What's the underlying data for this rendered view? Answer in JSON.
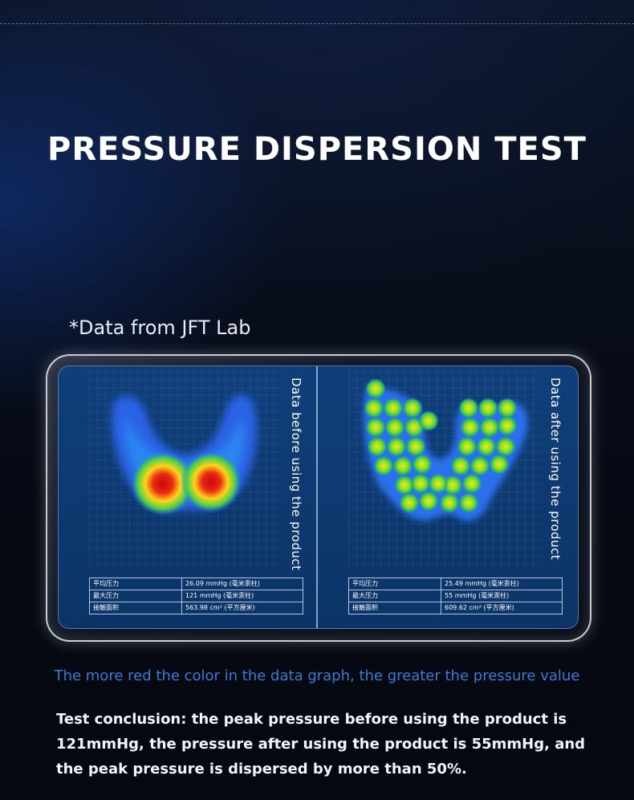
{
  "title": "PRESSURE DISPERSION TEST",
  "source_note": "*Data from JFT Lab",
  "panels": {
    "before": {
      "label": "Data before using the product",
      "rows": [
        {
          "k": "平均压力",
          "v": "26.09 mmHg (毫米汞柱)"
        },
        {
          "k": "最大压力",
          "v": "121 mmHg (毫米汞柱)"
        },
        {
          "k": "接触面积",
          "v": "563.98 cm² (平方厘米)"
        }
      ]
    },
    "after": {
      "label": "Data after using the product",
      "rows": [
        {
          "k": "平均压力",
          "v": "25.49 mmHg (毫米汞柱)"
        },
        {
          "k": "最大压力",
          "v": "55 mmHg (毫米汞柱)"
        },
        {
          "k": "接触面积",
          "v": "609.62 cm² (平方厘米)"
        }
      ]
    }
  },
  "caption": "The more red the color in the data graph, the greater the pressure value",
  "conclusion": "Test conclusion: the peak pressure before using the product is 121mmHg, the pressure after using the product is 55mmHg, and the peak pressure is dispersed by more than 50%.",
  "colors": {
    "caption": "#3a7bd6",
    "screen": "#0f3f7a",
    "heat_low": "#2a66e8",
    "heat_mid": "#35d04a",
    "heat_high": "#ffe21a",
    "heat_peak": "#e0141a"
  }
}
